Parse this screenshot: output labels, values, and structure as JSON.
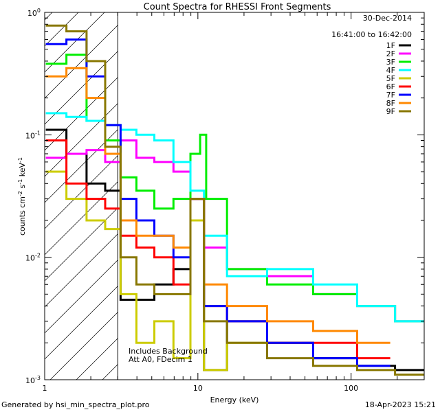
{
  "chart_data": {
    "type": "line",
    "title": "Count Spectra for RHESSI Front Segments",
    "xlabel": "Energy (keV)",
    "ylabel": {
      "base": "counts cm",
      "e1": "-2",
      "s": " s",
      "e2": "-1",
      "kev": " keV",
      "e3": "-1"
    },
    "xscale": "log",
    "yscale": "log",
    "xlim": [
      1,
      300
    ],
    "ylim": [
      0.001,
      1
    ],
    "x_ticks": [
      {
        "v": 1,
        "label": "1"
      },
      {
        "v": 10,
        "label": "10"
      },
      {
        "v": 100,
        "label": "100"
      }
    ],
    "y_ticks": [
      {
        "v": 1,
        "base": "10",
        "exp": "0"
      },
      {
        "v": 0.1,
        "base": "10",
        "exp": "-1"
      },
      {
        "v": 0.01,
        "base": "10",
        "exp": "-2"
      },
      {
        "v": 0.001,
        "base": "10",
        "exp": "-3"
      }
    ],
    "date": "30-Dec-2014",
    "time_range": "16:41:00 to 16:42:00",
    "shaded_region": {
      "xmin": 1,
      "xmax": 3
    },
    "annotations": [
      "Includes Background",
      "Att A0, FDecim 1"
    ],
    "series": [
      {
        "name": "1F",
        "color": "#000000",
        "points": [
          [
            1.2,
            0.11
          ],
          [
            1.6,
            0.07
          ],
          [
            2.2,
            0.04
          ],
          [
            2.8,
            0.035
          ],
          [
            3.5,
            0.0045
          ],
          [
            4.5,
            0.0045
          ],
          [
            6,
            0.006
          ],
          [
            8,
            0.008
          ],
          [
            10,
            0.03
          ],
          [
            12,
            0.0012
          ],
          [
            20,
            0.003
          ],
          [
            40,
            0.002
          ],
          [
            80,
            0.0015
          ],
          [
            150,
            0.0013
          ],
          [
            250,
            0.0012
          ]
        ]
      },
      {
        "name": "2F",
        "color": "#ff00ff",
        "points": [
          [
            1.2,
            0.065
          ],
          [
            1.6,
            0.07
          ],
          [
            2.2,
            0.075
          ],
          [
            2.8,
            0.06
          ],
          [
            3.5,
            0.09
          ],
          [
            4.5,
            0.065
          ],
          [
            6,
            0.06
          ],
          [
            8,
            0.05
          ],
          [
            10,
            0.03
          ],
          [
            12,
            0.012
          ],
          [
            20,
            0.008
          ],
          [
            40,
            0.007
          ],
          [
            80,
            0.005
          ],
          [
            150,
            0.004
          ],
          [
            250,
            0.003
          ]
        ]
      },
      {
        "name": "3F",
        "color": "#00ee00",
        "points": [
          [
            1.2,
            0.38
          ],
          [
            1.6,
            0.45
          ],
          [
            2.2,
            0.13
          ],
          [
            2.8,
            0.09
          ],
          [
            3.5,
            0.045
          ],
          [
            4.5,
            0.035
          ],
          [
            6,
            0.025
          ],
          [
            8,
            0.03
          ],
          [
            10,
            0.07
          ],
          [
            10.7,
            0.1
          ],
          [
            12,
            0.03
          ],
          [
            20,
            0.008
          ],
          [
            40,
            0.006
          ],
          [
            80,
            0.005
          ],
          [
            150,
            0.004
          ],
          [
            250,
            0.003
          ]
        ]
      },
      {
        "name": "4F",
        "color": "#00ffff",
        "points": [
          [
            1.2,
            0.15
          ],
          [
            1.6,
            0.14
          ],
          [
            2.2,
            0.13
          ],
          [
            2.8,
            0.12
          ],
          [
            3.5,
            0.11
          ],
          [
            4.5,
            0.1
          ],
          [
            6,
            0.09
          ],
          [
            8,
            0.06
          ],
          [
            10,
            0.035
          ],
          [
            12,
            0.015
          ],
          [
            20,
            0.007
          ],
          [
            40,
            0.008
          ],
          [
            80,
            0.006
          ],
          [
            150,
            0.004
          ],
          [
            250,
            0.003
          ]
        ]
      },
      {
        "name": "5F",
        "color": "#cccc00",
        "points": [
          [
            1.2,
            0.05
          ],
          [
            1.6,
            0.03
          ],
          [
            2.2,
            0.02
          ],
          [
            2.8,
            0.017
          ],
          [
            3.5,
            0.005
          ],
          [
            4.5,
            0.002
          ],
          [
            6,
            0.003
          ],
          [
            8,
            0.0015
          ],
          [
            10,
            0.02
          ],
          [
            12,
            0.0012
          ],
          [
            20,
            0.002
          ],
          [
            40,
            0.002
          ]
        ]
      },
      {
        "name": "6F",
        "color": "#ff0000",
        "points": [
          [
            1.2,
            0.09
          ],
          [
            1.6,
            0.04
          ],
          [
            2.2,
            0.03
          ],
          [
            2.8,
            0.025
          ],
          [
            3.5,
            0.015
          ],
          [
            4.5,
            0.012
          ],
          [
            6,
            0.01
          ],
          [
            8,
            0.006
          ],
          [
            10,
            0.03
          ],
          [
            12,
            0.004
          ],
          [
            20,
            0.003
          ],
          [
            40,
            0.002
          ],
          [
            80,
            0.002
          ],
          [
            150,
            0.0015
          ]
        ]
      },
      {
        "name": "7F",
        "color": "#0000ff",
        "points": [
          [
            1.2,
            0.55
          ],
          [
            1.6,
            0.6
          ],
          [
            2.2,
            0.3
          ],
          [
            2.8,
            0.12
          ],
          [
            3.5,
            0.03
          ],
          [
            4.5,
            0.02
          ],
          [
            6,
            0.015
          ],
          [
            8,
            0.01
          ],
          [
            10,
            0.03
          ],
          [
            12,
            0.004
          ],
          [
            20,
            0.003
          ],
          [
            40,
            0.002
          ],
          [
            80,
            0.0015
          ],
          [
            150,
            0.0013
          ]
        ]
      },
      {
        "name": "8F",
        "color": "#ff8800",
        "points": [
          [
            1.2,
            0.3
          ],
          [
            1.6,
            0.35
          ],
          [
            2.2,
            0.2
          ],
          [
            2.8,
            0.07
          ],
          [
            3.5,
            0.02
          ],
          [
            4.5,
            0.015
          ],
          [
            6,
            0.015
          ],
          [
            8,
            0.012
          ],
          [
            10,
            0.03
          ],
          [
            12,
            0.006
          ],
          [
            20,
            0.004
          ],
          [
            40,
            0.003
          ],
          [
            80,
            0.0025
          ],
          [
            150,
            0.002
          ]
        ]
      },
      {
        "name": "9F",
        "color": "#887700",
        "points": [
          [
            1.2,
            0.78
          ],
          [
            1.6,
            0.7
          ],
          [
            2.2,
            0.4
          ],
          [
            2.8,
            0.08
          ],
          [
            3.5,
            0.01
          ],
          [
            4.5,
            0.006
          ],
          [
            6,
            0.005
          ],
          [
            8,
            0.005
          ],
          [
            10,
            0.03
          ],
          [
            12,
            0.003
          ],
          [
            20,
            0.002
          ],
          [
            40,
            0.0015
          ],
          [
            80,
            0.0013
          ],
          [
            150,
            0.0012
          ],
          [
            250,
            0.0011
          ]
        ]
      }
    ]
  },
  "footer": {
    "generated": "Generated by hsi_min_spectra_plot.pro",
    "timestamp": "18-Apr-2023 15:21"
  }
}
